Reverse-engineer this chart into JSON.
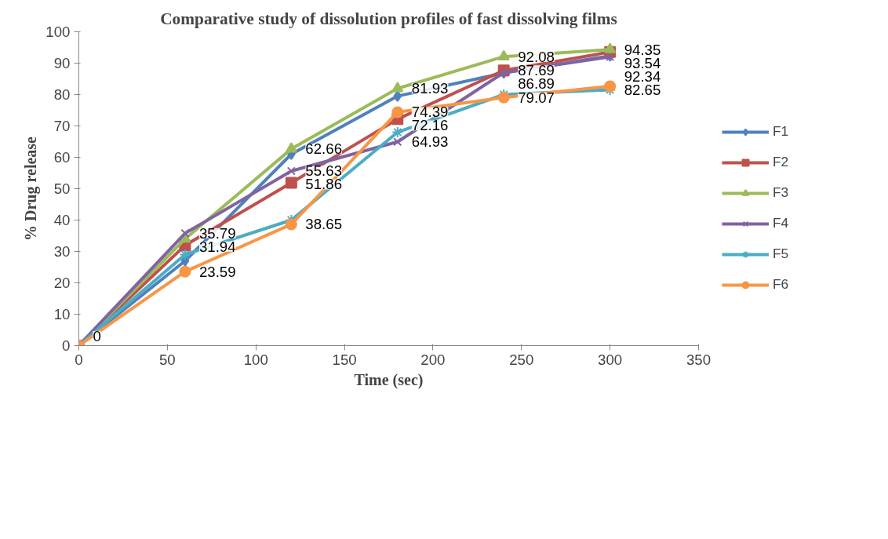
{
  "chart_data": {
    "type": "line",
    "title": "Comparative study of dissolution profiles of fast dissolving films",
    "xlabel": "Time (sec)",
    "ylabel": "% Drug release",
    "x": [
      0,
      60,
      120,
      180,
      240,
      300
    ],
    "xlim": [
      0,
      350
    ],
    "xticks": [
      0,
      50,
      100,
      150,
      200,
      250,
      300,
      350
    ],
    "ylim": [
      0,
      100
    ],
    "yticks": [
      0,
      10,
      20,
      30,
      40,
      50,
      60,
      70,
      80,
      90,
      100
    ],
    "grid": false,
    "legend": "right",
    "line_style": "solid",
    "series": [
      {
        "name": "F1",
        "color": "#4f81bd",
        "marker": "diamond",
        "values": [
          0,
          27,
          61,
          79.5,
          86.89,
          92.34
        ],
        "value_labels": [
          null,
          null,
          null,
          null,
          "86.89",
          "92.34"
        ]
      },
      {
        "name": "F2",
        "color": "#c0504d",
        "marker": "square",
        "values": [
          0,
          31.94,
          51.86,
          72.16,
          87.69,
          93.54
        ],
        "value_labels": [
          null,
          "31.94",
          "51.86",
          "72.16",
          "87.69",
          "93.54"
        ]
      },
      {
        "name": "F3",
        "color": "#9bbb59",
        "marker": "triangle",
        "values": [
          0,
          34,
          62.66,
          81.93,
          92.08,
          94.35
        ],
        "value_labels": [
          null,
          null,
          "62.66",
          "81.93",
          "92.08",
          "94.35"
        ]
      },
      {
        "name": "F4",
        "color": "#8064a2",
        "marker": "x",
        "values": [
          0,
          35.79,
          55.63,
          64.93,
          87,
          92
        ],
        "value_labels": [
          null,
          "35.79",
          "55.63",
          "64.93",
          null,
          null
        ]
      },
      {
        "name": "F5",
        "color": "#4bacc6",
        "marker": "cross",
        "values": [
          0,
          29,
          40,
          68,
          80,
          81.5
        ],
        "value_labels": [
          null,
          null,
          null,
          null,
          null,
          null
        ]
      },
      {
        "name": "F6",
        "color": "#f79646",
        "marker": "circle",
        "values": [
          0,
          23.59,
          38.65,
          74.39,
          79.07,
          82.65
        ],
        "value_labels": [
          "0",
          "23.59",
          "38.65",
          "74.39",
          "79.07",
          "82.65"
        ]
      }
    ]
  }
}
